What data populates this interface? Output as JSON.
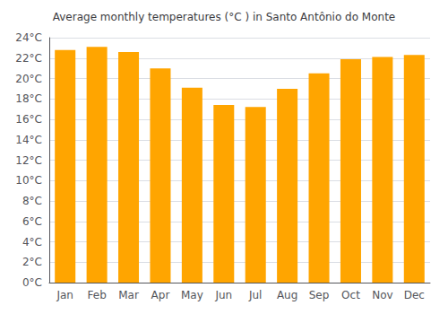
{
  "chart_data": {
    "type": "bar",
    "title": "Average monthly temperatures (°C ) in Santo Antônio do Monte",
    "categories": [
      "Jan",
      "Feb",
      "Mar",
      "Apr",
      "May",
      "Jun",
      "Jul",
      "Aug",
      "Sep",
      "Oct",
      "Nov",
      "Dec"
    ],
    "values": [
      22.8,
      23.1,
      22.6,
      21.0,
      19.1,
      17.4,
      17.2,
      19.0,
      20.5,
      21.9,
      22.1,
      22.3
    ],
    "color": "#FFA500",
    "ylim": [
      0,
      24
    ],
    "yticks": [
      {
        "value": 0,
        "label": "0°C"
      },
      {
        "value": 2,
        "label": "2°C"
      },
      {
        "value": 4,
        "label": "4°C"
      },
      {
        "value": 6,
        "label": "6°C"
      },
      {
        "value": 8,
        "label": "8°C"
      },
      {
        "value": 10,
        "label": "10°C"
      },
      {
        "value": 12,
        "label": "12°C"
      },
      {
        "value": 14,
        "label": "14°C"
      },
      {
        "value": 16,
        "label": "16°C"
      },
      {
        "value": 18,
        "label": "18°C"
      },
      {
        "value": 20,
        "label": "20°C"
      },
      {
        "value": 22,
        "label": "22°C"
      },
      {
        "value": 24,
        "label": "24°C"
      }
    ],
    "grid": true
  }
}
